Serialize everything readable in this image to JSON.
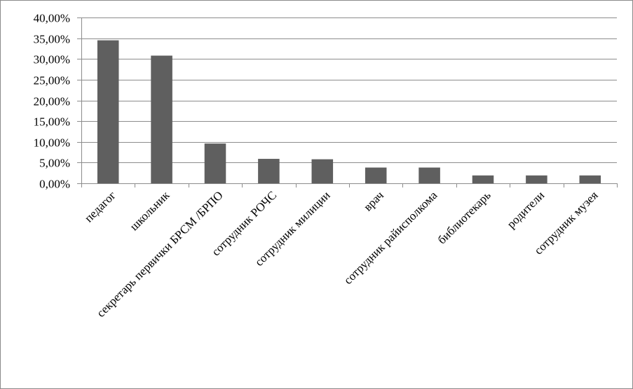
{
  "chart_data": {
    "type": "bar",
    "title": "",
    "xlabel": "",
    "ylabel": "",
    "categories": [
      "педагог",
      "школьник",
      "секретарь первички БРСМ /БРПО",
      "сотрудник РОЧС",
      "сотрудник милиции",
      "врач",
      "сотрудник райисполкома",
      "библиотекарь",
      "родители",
      "сотрудник музея"
    ],
    "values": [
      34.5,
      30.8,
      9.6,
      5.9,
      5.8,
      3.8,
      3.8,
      1.9,
      1.9,
      1.9
    ],
    "ylim": [
      0,
      40
    ],
    "yticks": [
      0,
      5,
      10,
      15,
      20,
      25,
      30,
      35,
      40
    ],
    "ytick_labels": [
      "0,00%",
      "5,00%",
      "10,00%",
      "15,00%",
      "20,00%",
      "25,00%",
      "30,00%",
      "35,00%",
      "40,00%"
    ],
    "grid": true,
    "legend": "none",
    "bar_color": "#5f5f5f",
    "grid_color": "#8c8c8c",
    "axis_color": "#8c8c8c"
  }
}
